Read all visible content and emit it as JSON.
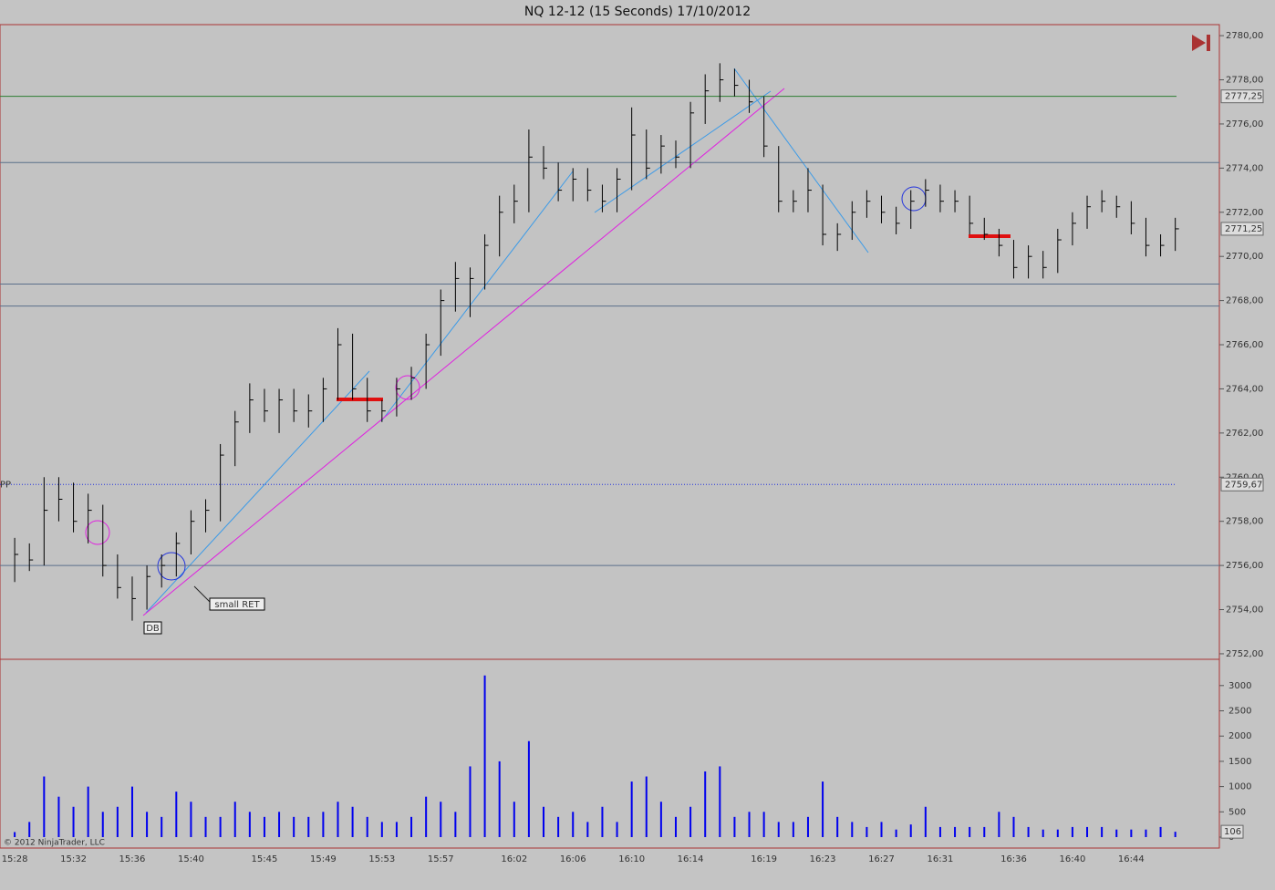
{
  "chart_data": [
    {
      "type": "ohlc",
      "title": "NQ 12-12 (15 Seconds)  17/10/2012",
      "categories": [
        "15:28",
        null,
        null,
        null,
        "15:32",
        null,
        null,
        null,
        "15:36",
        null,
        null,
        null,
        "15:40",
        null,
        null,
        null,
        null,
        "15:45",
        null,
        null,
        null,
        "15:49",
        null,
        null,
        null,
        "15:53",
        null,
        null,
        null,
        "15:57",
        null,
        null,
        null,
        null,
        "16:02",
        null,
        null,
        null,
        "16:06",
        null,
        null,
        null,
        "16:10",
        null,
        null,
        null,
        "16:14",
        null,
        null,
        null,
        null,
        "16:19",
        null,
        null,
        null,
        "16:23",
        null,
        null,
        null,
        "16:27",
        null,
        null,
        null,
        "16:31",
        null,
        null,
        null,
        null,
        "16:36",
        null,
        null,
        null,
        "16:40",
        null,
        null,
        null,
        "16:44",
        null,
        null,
        null
      ],
      "high": [
        2757.25,
        2757,
        2760,
        2760,
        2759.75,
        2759.25,
        2758.75,
        2756.5,
        2755.5,
        2756,
        2756.5,
        2757.5,
        2758.5,
        2759,
        2761.5,
        2763,
        2764.25,
        2764,
        2764,
        2764,
        2763.75,
        2764.5,
        2766.75,
        2766.5,
        2764.5,
        2763.5,
        2764.5,
        2765,
        2766.5,
        2768.5,
        2769.75,
        2769.5,
        2771,
        2772.75,
        2773.25,
        2775.75,
        2775,
        2774.25,
        2774,
        2774,
        2773.25,
        2774,
        2776.75,
        2775.75,
        2775.5,
        2775.25,
        2777,
        2778.25,
        2778.75,
        2778.5,
        2778,
        2777.25,
        2775,
        2773,
        2774,
        2773.25,
        2771.5,
        2772.5,
        2773,
        2772.75,
        2772.25,
        2773,
        2773.5,
        2773.25,
        2773,
        2772.75,
        2771.75,
        2771.25,
        2770.75,
        2770.5,
        2770.25,
        2771.25,
        2772,
        2772.75,
        2773,
        2772.75,
        2772.5,
        2771.75,
        2771,
        2771.75
      ],
      "low": [
        2755.25,
        2755.75,
        2756,
        2758,
        2757.5,
        2757,
        2755.5,
        2754.5,
        2753.5,
        2754,
        2755,
        2755.5,
        2756.5,
        2757.5,
        2758,
        2760.5,
        2762,
        2762.5,
        2762,
        2762.5,
        2762.25,
        2762.5,
        2763.5,
        2763.5,
        2762.5,
        2762.5,
        2762.75,
        2763.5,
        2764,
        2765.5,
        2767.5,
        2767.25,
        2768.5,
        2770,
        2771.5,
        2772,
        2773.5,
        2772.5,
        2772.5,
        2772.5,
        2772,
        2772,
        2773,
        2773.5,
        2773.75,
        2774,
        2774,
        2776,
        2777,
        2777.25,
        2776.5,
        2774.5,
        2772,
        2772,
        2772,
        2770.5,
        2770.25,
        2770.75,
        2771.75,
        2771.5,
        2771,
        2771.25,
        2772.25,
        2772,
        2772,
        2771,
        2770.75,
        2770,
        2769,
        2769,
        2769,
        2769.25,
        2770.5,
        2771.25,
        2772,
        2771.75,
        2771,
        2770,
        2770,
        2770.25
      ],
      "close": [
        2756.5,
        2756.25,
        2758.5,
        2759,
        2758,
        2758.5,
        2756,
        2755,
        2754.5,
        2755.5,
        2756,
        2757,
        2758,
        2758.5,
        2761,
        2762.5,
        2763.5,
        2763,
        2763.5,
        2763,
        2763,
        2764,
        2766,
        2764,
        2763,
        2763,
        2764,
        2764.5,
        2766,
        2768,
        2769,
        2769,
        2770.5,
        2772,
        2772.5,
        2774.5,
        2774,
        2773,
        2773.5,
        2773,
        2772.5,
        2773.5,
        2775.5,
        2774,
        2775,
        2774.5,
        2776.5,
        2777.5,
        2778,
        2777.75,
        2777,
        2775,
        2772.5,
        2772.5,
        2773,
        2771,
        2771,
        2772,
        2772.5,
        2772,
        2771.5,
        2772.5,
        2773,
        2772.5,
        2772.5,
        2771.5,
        2771,
        2770.5,
        2769.5,
        2770,
        2769.5,
        2770.75,
        2771.5,
        2772.25,
        2772.5,
        2772.25,
        2771.5,
        2770.5,
        2770.5,
        2771.25
      ],
      "last_label": "2771,25",
      "color": "#000000",
      "xlim": [
        -1,
        82
      ],
      "ylim": [
        2751.75,
        2780.5
      ],
      "yticks": [
        {
          "value": 2752,
          "label": "2752,00"
        },
        {
          "value": 2754,
          "label": "2754,00"
        },
        {
          "value": 2756,
          "label": "2756,00"
        },
        {
          "value": 2758,
          "label": "2758,00"
        },
        {
          "value": 2760,
          "label": "2760,00"
        },
        {
          "value": 2762,
          "label": "2762,00"
        },
        {
          "value": 2764,
          "label": "2764,00"
        },
        {
          "value": 2766,
          "label": "2766,00"
        },
        {
          "value": 2768,
          "label": "2768,00"
        },
        {
          "value": 2770,
          "label": "2770,00"
        },
        {
          "value": 2772,
          "label": "2772,00"
        },
        {
          "value": 2774,
          "label": "2774,00"
        },
        {
          "value": 2776,
          "label": "2776,00"
        },
        {
          "value": 2778,
          "label": "2778,00"
        },
        {
          "value": 2780,
          "label": "2780,00"
        }
      ],
      "levels": [
        {
          "value": 2777.25,
          "label": "2777,25",
          "color": "#2e7d32"
        },
        {
          "value": 2759.67,
          "label": "2759,67",
          "name": "PP",
          "color": "#2233dd",
          "style": "dotted"
        },
        {
          "value": 2774.25,
          "color": "#5a6f8a"
        },
        {
          "value": 2768.75,
          "color": "#5a6f8a"
        },
        {
          "value": 2767.75,
          "color": "#5a6f8a"
        },
        {
          "value": 2756,
          "color": "#5a6f8a"
        }
      ],
      "annotations": [
        "small RET",
        "DB"
      ],
      "copyright": "© 2012 NinjaTrader, LLC"
    },
    {
      "type": "bar",
      "color": "#0000ee",
      "values": [
        100,
        300,
        1200,
        800,
        600,
        1000,
        500,
        600,
        1000,
        500,
        400,
        900,
        700,
        400,
        400,
        700,
        500,
        400,
        500,
        400,
        400,
        500,
        700,
        600,
        400,
        300,
        300,
        400,
        800,
        700,
        500,
        1400,
        3200,
        1500,
        700,
        1900,
        600,
        400,
        500,
        300,
        600,
        300,
        1100,
        1200,
        700,
        400,
        600,
        1300,
        1400,
        400,
        500,
        500,
        300,
        300,
        400,
        1100,
        400,
        300,
        200,
        300,
        150,
        250,
        600,
        200,
        200,
        200,
        200,
        500,
        400,
        200,
        150,
        150,
        200,
        200,
        200,
        150,
        150,
        150,
        200,
        106
      ],
      "ylim": [
        0,
        3520
      ],
      "yticks": [
        0,
        500,
        1000,
        1500,
        2000,
        2500,
        3000
      ]
    }
  ]
}
